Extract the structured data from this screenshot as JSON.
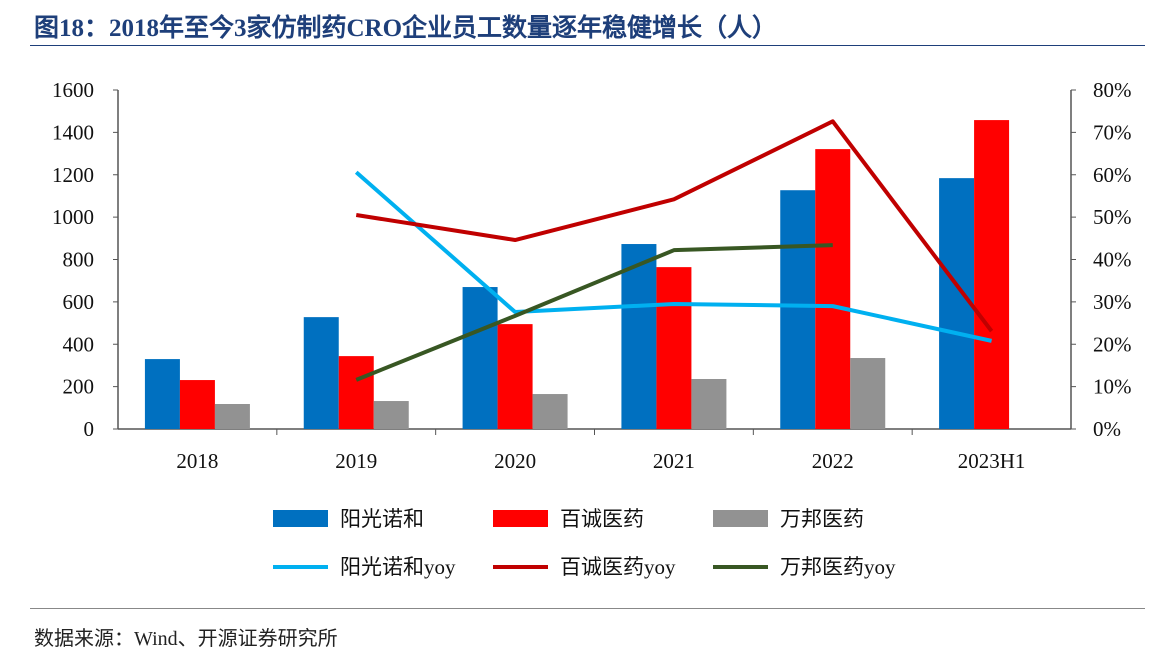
{
  "title": "图18：2018年至今3家仿制药CRO企业员工数量逐年稳健增长（人）",
  "source": "数据来源：Wind、开源证券研究所",
  "chart_data": {
    "type": "bar+line",
    "categories": [
      "2018",
      "2019",
      "2020",
      "2021",
      "2022",
      "2023H1"
    ],
    "left_axis": {
      "ylim": [
        0,
        1600
      ],
      "ticks": [
        "0",
        "200",
        "400",
        "600",
        "800",
        "1000",
        "1200",
        "1400",
        "1600"
      ]
    },
    "right_axis": {
      "ylim": [
        0,
        0.8
      ],
      "ticks": [
        "0%",
        "10%",
        "20%",
        "30%",
        "40%",
        "50%",
        "60%",
        "70%",
        "80%"
      ]
    },
    "bars": [
      {
        "name": "阳光诺和",
        "color": "#0070c0",
        "values": [
          330,
          528,
          670,
          873,
          1127,
          1184
        ]
      },
      {
        "name": "百诚医药",
        "color": "#ff0000",
        "values": [
          231,
          344,
          495,
          764,
          1321,
          1458
        ]
      },
      {
        "name": "万邦医药",
        "color": "#929292",
        "values": [
          118,
          132,
          165,
          236,
          335,
          null
        ]
      }
    ],
    "lines": [
      {
        "name": "阳光诺和yoy",
        "color": "#00b0f0",
        "values": [
          null,
          0.606,
          0.276,
          0.295,
          0.29,
          0.208
        ]
      },
      {
        "name": "百诚医药yoy",
        "color": "#c00000",
        "values": [
          null,
          0.505,
          0.446,
          0.542,
          0.726,
          0.231
        ]
      },
      {
        "name": "万邦医药yoy",
        "color": "#385723",
        "values": [
          null,
          0.116,
          0.267,
          0.422,
          0.434,
          null
        ]
      }
    ],
    "legend_position": "bottom"
  }
}
